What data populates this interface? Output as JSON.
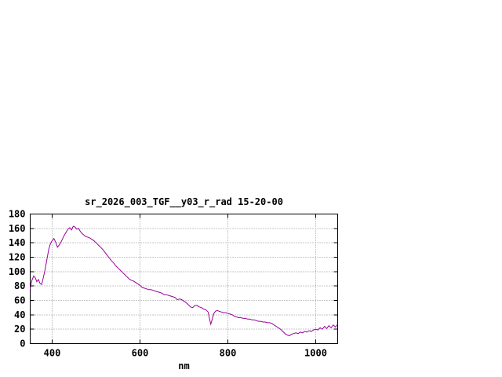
{
  "chart_data": {
    "type": "line",
    "title": "sr_2026_003_TGF__y03_r_rad 15-20-00",
    "xlabel": "nm",
    "ylabel": "",
    "xlim": [
      350,
      1050
    ],
    "ylim": [
      0,
      180
    ],
    "xticks": [
      400,
      600,
      800,
      1000
    ],
    "yticks": [
      0,
      20,
      40,
      60,
      80,
      100,
      120,
      140,
      160,
      180
    ],
    "grid": true,
    "legend_position": "none",
    "line_color": "#990099",
    "series": [
      {
        "points": [
          [
            350,
            76
          ],
          [
            354,
            88
          ],
          [
            358,
            94
          ],
          [
            362,
            91
          ],
          [
            365,
            86
          ],
          [
            369,
            89
          ],
          [
            372,
            84
          ],
          [
            376,
            82
          ],
          [
            380,
            92
          ],
          [
            384,
            103
          ],
          [
            388,
            117
          ],
          [
            392,
            130
          ],
          [
            396,
            139
          ],
          [
            400,
            143
          ],
          [
            404,
            146
          ],
          [
            408,
            141
          ],
          [
            412,
            134
          ],
          [
            416,
            137
          ],
          [
            420,
            141
          ],
          [
            424,
            146
          ],
          [
            428,
            151
          ],
          [
            432,
            155
          ],
          [
            436,
            159
          ],
          [
            440,
            161
          ],
          [
            444,
            158
          ],
          [
            448,
            163
          ],
          [
            452,
            162
          ],
          [
            456,
            159
          ],
          [
            460,
            160
          ],
          [
            464,
            156
          ],
          [
            468,
            153
          ],
          [
            472,
            151
          ],
          [
            476,
            149
          ],
          [
            480,
            148
          ],
          [
            485,
            147
          ],
          [
            490,
            145
          ],
          [
            495,
            143
          ],
          [
            500,
            140
          ],
          [
            505,
            137
          ],
          [
            510,
            134
          ],
          [
            515,
            131
          ],
          [
            520,
            127
          ],
          [
            525,
            123
          ],
          [
            530,
            119
          ],
          [
            535,
            115
          ],
          [
            540,
            112
          ],
          [
            545,
            108
          ],
          [
            550,
            105
          ],
          [
            555,
            102
          ],
          [
            560,
            99
          ],
          [
            565,
            96
          ],
          [
            570,
            93
          ],
          [
            575,
            90
          ],
          [
            580,
            88
          ],
          [
            585,
            87
          ],
          [
            590,
            85
          ],
          [
            595,
            83
          ],
          [
            600,
            81
          ],
          [
            605,
            78
          ],
          [
            610,
            77
          ],
          [
            615,
            76
          ],
          [
            620,
            75
          ],
          [
            625,
            75
          ],
          [
            630,
            74
          ],
          [
            635,
            73
          ],
          [
            640,
            72
          ],
          [
            645,
            71
          ],
          [
            650,
            70
          ],
          [
            655,
            68
          ],
          [
            660,
            68
          ],
          [
            665,
            67
          ],
          [
            670,
            66
          ],
          [
            675,
            65
          ],
          [
            680,
            64
          ],
          [
            685,
            61
          ],
          [
            690,
            62
          ],
          [
            695,
            61
          ],
          [
            700,
            59
          ],
          [
            705,
            57
          ],
          [
            710,
            54
          ],
          [
            715,
            51
          ],
          [
            720,
            50
          ],
          [
            725,
            53
          ],
          [
            730,
            53
          ],
          [
            735,
            51
          ],
          [
            740,
            50
          ],
          [
            745,
            48
          ],
          [
            750,
            47
          ],
          [
            755,
            44
          ],
          [
            758,
            35
          ],
          [
            761,
            27
          ],
          [
            764,
            33
          ],
          [
            768,
            42
          ],
          [
            772,
            45
          ],
          [
            776,
            46
          ],
          [
            780,
            45
          ],
          [
            785,
            44
          ],
          [
            790,
            43
          ],
          [
            795,
            43
          ],
          [
            800,
            42
          ],
          [
            805,
            41
          ],
          [
            810,
            40
          ],
          [
            815,
            38
          ],
          [
            820,
            37
          ],
          [
            825,
            36
          ],
          [
            830,
            36
          ],
          [
            835,
            35
          ],
          [
            840,
            35
          ],
          [
            845,
            34
          ],
          [
            850,
            34
          ],
          [
            855,
            33
          ],
          [
            860,
            33
          ],
          [
            865,
            32
          ],
          [
            870,
            31
          ],
          [
            875,
            31
          ],
          [
            880,
            30
          ],
          [
            885,
            30
          ],
          [
            890,
            29
          ],
          [
            895,
            29
          ],
          [
            900,
            28
          ],
          [
            905,
            26
          ],
          [
            910,
            24
          ],
          [
            915,
            22
          ],
          [
            920,
            20
          ],
          [
            925,
            17
          ],
          [
            930,
            14
          ],
          [
            935,
            12
          ],
          [
            940,
            11
          ],
          [
            945,
            13
          ],
          [
            950,
            14
          ],
          [
            955,
            15
          ],
          [
            960,
            14
          ],
          [
            965,
            16
          ],
          [
            970,
            15
          ],
          [
            975,
            17
          ],
          [
            980,
            16
          ],
          [
            985,
            18
          ],
          [
            990,
            17
          ],
          [
            995,
            19
          ],
          [
            1000,
            20
          ],
          [
            1005,
            19
          ],
          [
            1010,
            22
          ],
          [
            1015,
            20
          ],
          [
            1020,
            24
          ],
          [
            1025,
            21
          ],
          [
            1030,
            25
          ],
          [
            1035,
            22
          ],
          [
            1040,
            26
          ],
          [
            1045,
            23
          ],
          [
            1050,
            27
          ]
        ]
      }
    ]
  }
}
